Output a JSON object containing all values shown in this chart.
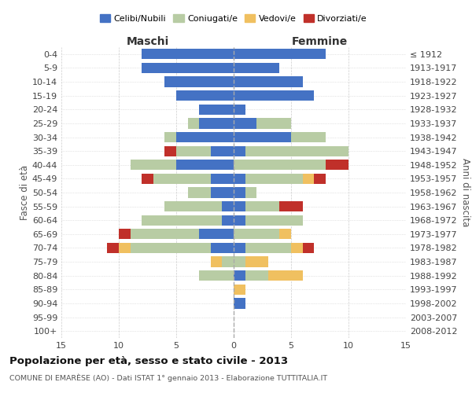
{
  "age_groups": [
    "0-4",
    "5-9",
    "10-14",
    "15-19",
    "20-24",
    "25-29",
    "30-34",
    "35-39",
    "40-44",
    "45-49",
    "50-54",
    "55-59",
    "60-64",
    "65-69",
    "70-74",
    "75-79",
    "80-84",
    "85-89",
    "90-94",
    "95-99",
    "100+"
  ],
  "birth_years": [
    "2008-2012",
    "2003-2007",
    "1998-2002",
    "1993-1997",
    "1988-1992",
    "1983-1987",
    "1978-1982",
    "1973-1977",
    "1968-1972",
    "1963-1967",
    "1958-1962",
    "1953-1957",
    "1948-1952",
    "1943-1947",
    "1938-1942",
    "1933-1937",
    "1928-1932",
    "1923-1927",
    "1918-1922",
    "1913-1917",
    "≤ 1912"
  ],
  "male": {
    "celibi": [
      8,
      8,
      6,
      5,
      3,
      3,
      5,
      2,
      5,
      2,
      2,
      1,
      1,
      3,
      2,
      0,
      0,
      0,
      0,
      0,
      0
    ],
    "coniugati": [
      0,
      0,
      0,
      0,
      0,
      1,
      1,
      3,
      4,
      5,
      2,
      5,
      7,
      6,
      7,
      1,
      3,
      0,
      0,
      0,
      0
    ],
    "vedovi": [
      0,
      0,
      0,
      0,
      0,
      0,
      0,
      0,
      0,
      0,
      0,
      0,
      0,
      0,
      1,
      1,
      0,
      0,
      0,
      0,
      0
    ],
    "divorziati": [
      0,
      0,
      0,
      0,
      0,
      0,
      0,
      1,
      0,
      1,
      0,
      0,
      0,
      1,
      1,
      0,
      0,
      0,
      0,
      0,
      0
    ]
  },
  "female": {
    "nubili": [
      8,
      4,
      6,
      7,
      1,
      2,
      5,
      1,
      0,
      1,
      1,
      1,
      1,
      0,
      1,
      0,
      1,
      0,
      1,
      0,
      0
    ],
    "coniugate": [
      0,
      0,
      0,
      0,
      0,
      3,
      3,
      9,
      8,
      5,
      1,
      3,
      5,
      4,
      4,
      1,
      2,
      0,
      0,
      0,
      0
    ],
    "vedove": [
      0,
      0,
      0,
      0,
      0,
      0,
      0,
      0,
      0,
      1,
      0,
      0,
      0,
      1,
      1,
      2,
      3,
      1,
      0,
      0,
      0
    ],
    "divorziate": [
      0,
      0,
      0,
      0,
      0,
      0,
      0,
      0,
      2,
      1,
      0,
      2,
      0,
      0,
      1,
      0,
      0,
      0,
      0,
      0,
      0
    ]
  },
  "colors": {
    "celibi": "#4472c4",
    "coniugati": "#b8cca4",
    "vedovi": "#f0c060",
    "divorziati": "#c0302a"
  },
  "xlim": 15,
  "title": "Popolazione per età, sesso e stato civile - 2013",
  "subtitle": "COMUNE DI EMARÈSE (AO) - Dati ISTAT 1° gennaio 2013 - Elaborazione TUTTITALIA.IT",
  "ylabel_left": "Fasce di età",
  "ylabel_right": "Anni di nascita",
  "xlabel_left": "Maschi",
  "xlabel_right": "Femmine",
  "legend_labels": [
    "Celibi/Nubili",
    "Coniugati/e",
    "Vedovi/e",
    "Divorziati/e"
  ],
  "background_color": "#ffffff",
  "grid_color": "#cccccc"
}
